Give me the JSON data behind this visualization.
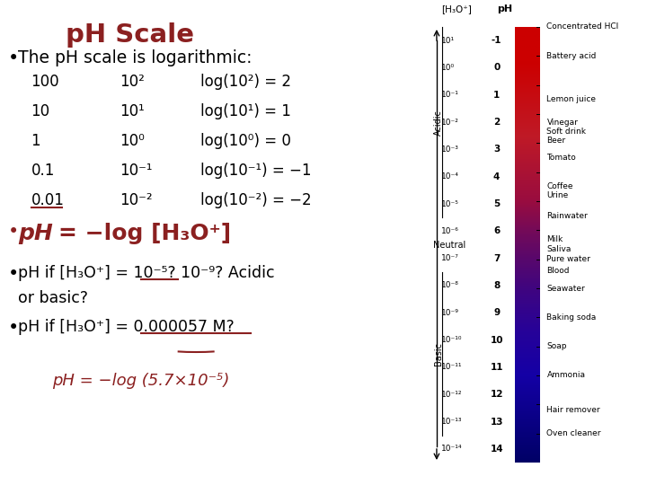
{
  "title": "pH Scale",
  "title_color": "#8B2020",
  "bg_color": "#FFFFFF",
  "bullet1": "The pH scale is logarithmic:",
  "table_col1": [
    "100",
    "10",
    "1",
    "0.1",
    "0.01"
  ],
  "table_col2": [
    "10²",
    "10¹",
    "10⁰",
    "10⁻¹",
    "10⁻²"
  ],
  "table_col3": [
    "log(10²) = 2",
    "log(10¹) = 1",
    "log(10⁰) = 0",
    "log(10⁻¹) = −1",
    "log(10⁻²) = −2"
  ],
  "ph_labels": [
    "-1",
    "0",
    "1",
    "2",
    "3",
    "4",
    "5",
    "6",
    "7",
    "8",
    "9",
    "10",
    "11",
    "12",
    "13",
    "14"
  ],
  "h3o_labels": [
    "10¹",
    "10⁰",
    "10⁻¹",
    "10⁻²",
    "10⁻³",
    "10⁻⁴",
    "10⁻⁵",
    "10⁻⁶",
    "10⁻⁷",
    "10⁻⁸",
    "10⁻⁹",
    "10⁻¹⁰",
    "10⁻¹¹",
    "10⁻¹²",
    "10⁻¹³",
    "10⁻¹⁴"
  ],
  "substances": [
    [
      -1.0,
      "Concentrated HCl",
      true
    ],
    [
      0.0,
      "Battery acid",
      true
    ],
    [
      1.5,
      "Lemon juice",
      false
    ],
    [
      2.3,
      "Vinegar",
      true
    ],
    [
      2.6,
      "Soft drink",
      true
    ],
    [
      2.9,
      "Beer",
      true
    ],
    [
      3.5,
      "Tomato",
      true
    ],
    [
      4.5,
      "Coffee",
      true
    ],
    [
      4.8,
      "Urine",
      true
    ],
    [
      5.5,
      "Rainwater",
      true
    ],
    [
      6.3,
      "Milk",
      true
    ],
    [
      6.65,
      "Saliva",
      false
    ],
    [
      7.0,
      "Pure water",
      true
    ],
    [
      7.4,
      "Blood",
      true
    ],
    [
      8.0,
      "Seawater",
      true
    ],
    [
      9.0,
      "Baking soda",
      true
    ],
    [
      10.0,
      "Soap",
      false
    ],
    [
      11.0,
      "Ammonia",
      false
    ],
    [
      12.2,
      "Hair remover",
      true
    ],
    [
      13.0,
      "Oven cleaner",
      false
    ]
  ],
  "bar_colors": [
    "#CC0000",
    "#CC0000",
    "#CC1100",
    "#CC2200",
    "#BB3300",
    "#AA4400",
    "#994433",
    "#884455",
    "#774466",
    "#554488",
    "#3344AA",
    "#2233BB",
    "#1122CC",
    "#0011CC",
    "#000099",
    "#000066"
  ]
}
